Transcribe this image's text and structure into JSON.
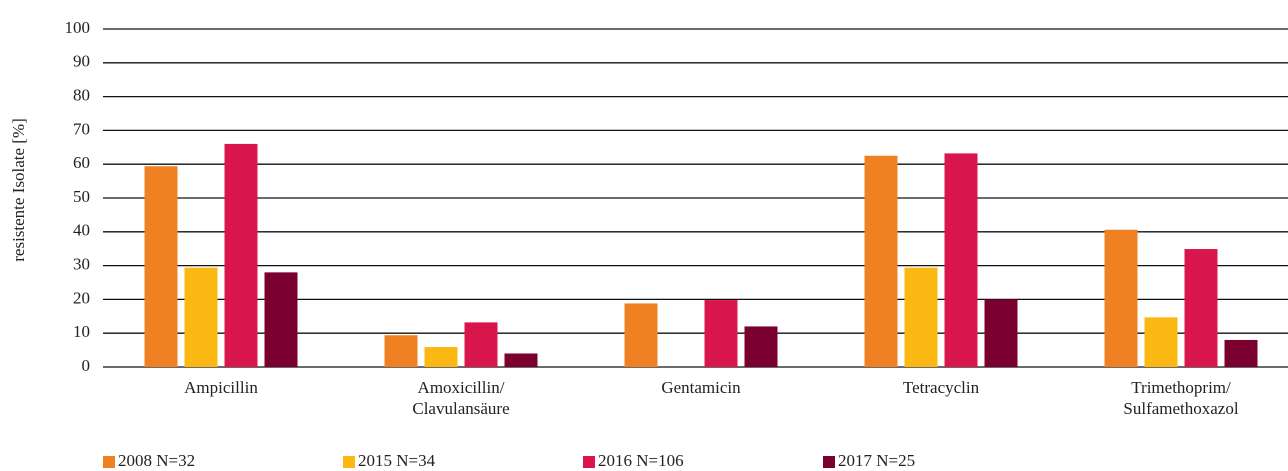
{
  "chart_data": {
    "type": "bar",
    "ylabel": "resistente Isolate [%]",
    "categories": [
      "Ampicillin",
      "Amoxicillin/\nClavulansäure",
      "Gentamicin",
      "Tetracyclin",
      "Trimethoprim/\nSulfamethoxazol"
    ],
    "series": [
      {
        "name": "2008 N=32",
        "color": "#f08122",
        "values": [
          59.4,
          9.4,
          18.8,
          62.5,
          40.6
        ]
      },
      {
        "name": "2015 N=34",
        "color": "#fbb713",
        "values": [
          29.4,
          5.9,
          0,
          29.4,
          14.7
        ]
      },
      {
        "name": "2016 N=106",
        "color": "#d9164b",
        "values": [
          66.0,
          13.2,
          19.8,
          63.2,
          34.9
        ]
      },
      {
        "name": "2017 N=25",
        "color": "#7a0030",
        "values": [
          28,
          4,
          12,
          20,
          8
        ]
      }
    ],
    "ylim": [
      0,
      100
    ],
    "yticks": [
      0,
      10,
      20,
      30,
      40,
      50,
      60,
      70,
      80,
      90,
      100
    ],
    "grid": true,
    "legend": "bottom"
  }
}
